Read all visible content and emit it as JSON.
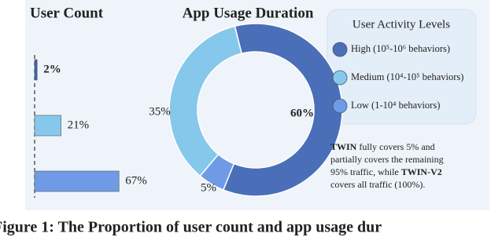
{
  "charts": [
    {
      "type": "hbar",
      "title": "User Count",
      "categories": [
        null,
        null,
        null
      ],
      "values": [
        2,
        21,
        67
      ],
      "value_labels": [
        "2%",
        "21%",
        "67%"
      ],
      "colors": [
        "#3f62ad",
        "#86c8eb",
        "#6f9be6"
      ],
      "xlim": [
        0,
        70
      ]
    },
    {
      "type": "donut",
      "title": "App Usage Duration",
      "categories": [
        "High (10⁵-10⁶ behaviors)",
        "Low (1-10⁴ behaviors)",
        "Medium (10⁴-10⁵ behaviors)"
      ],
      "values": [
        60,
        5,
        35
      ],
      "value_labels": [
        "60%",
        "5%",
        "35%"
      ],
      "colors": [
        "#4a6fb8",
        "#6f9be6",
        "#86c8eb"
      ],
      "legend_title": "User Activity Levels",
      "legend_order": [
        0,
        2,
        1
      ]
    }
  ],
  "note": [
    [
      {
        "text": "TWIN",
        "bold": true
      },
      {
        "text": " fully covers 5% and",
        "bold": false
      }
    ],
    [
      {
        "text": "partially covers the remaining",
        "bold": false
      }
    ],
    [
      {
        "text": "95% traffic, while ",
        "bold": false
      },
      {
        "text": "TWIN-V2",
        "bold": true
      }
    ],
    [
      {
        "text": "covers all traffic (100%).",
        "bold": false
      }
    ]
  ],
  "caption": "Figure 1: The Proportion of user count and app usage dur"
}
